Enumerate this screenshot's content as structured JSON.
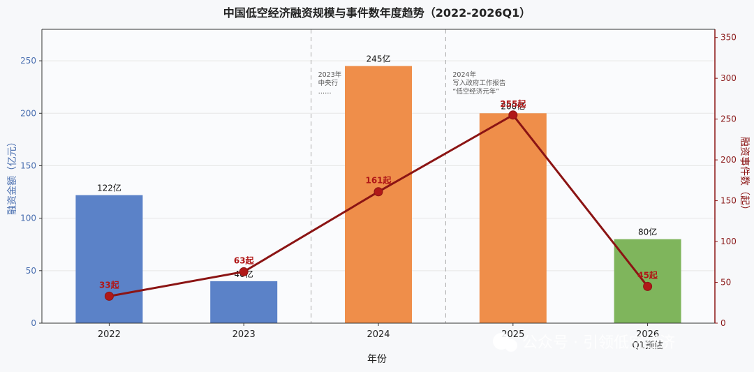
{
  "chart_data": {
    "type": "bar",
    "title": "中国低空经济融资规模与事件数年度趋势（2022-2026Q1）",
    "xlabel": "年份",
    "ylabel_left": "融资金额（亿元）",
    "ylabel_right": "融资事件数（起）",
    "ylim_left": [
      0,
      280
    ],
    "ylim_right": [
      0,
      360
    ],
    "yticks_left": [
      "0",
      "50",
      "100",
      "150",
      "200",
      "250"
    ],
    "yticks_right": [
      "0",
      "50",
      "100",
      "150",
      "200",
      "250",
      "300",
      "350"
    ],
    "categories": [
      "2022",
      "2023",
      "2024",
      "2025",
      "2026"
    ],
    "category_sublabels": [
      "",
      "",
      "",
      "",
      "Q1预估"
    ],
    "grid": true,
    "series": [
      {
        "kind": "bar",
        "axis": "left",
        "values": [
          122,
          40,
          245,
          200,
          80
        ],
        "labels": [
          "122亿",
          "40亿",
          "245亿",
          "200亿",
          "80亿"
        ],
        "colors": [
          "#5b82c8",
          "#5b82c8",
          "#ef8e4a",
          "#ef8e4a",
          "#7fb55c"
        ]
      },
      {
        "kind": "line",
        "axis": "right",
        "values": [
          33,
          63,
          161,
          255,
          45
        ],
        "labels": [
          "33起",
          "63起",
          "161起",
          "255起",
          "45起"
        ],
        "color": "#8b1414"
      }
    ],
    "annotations": [
      {
        "after_category": "2023",
        "lines": [
          "2023年",
          "中央行",
          "……"
        ]
      },
      {
        "after_category": "2024",
        "lines": [
          "2024年",
          "写入政府工作报告",
          "“低空经济元年”"
        ]
      }
    ]
  },
  "watermark": "公众号 · 引领低空经济",
  "colors": {
    "left_axis": "#4a6fb0",
    "right_axis": "#8b1414",
    "grid": "#e6e6e6"
  }
}
